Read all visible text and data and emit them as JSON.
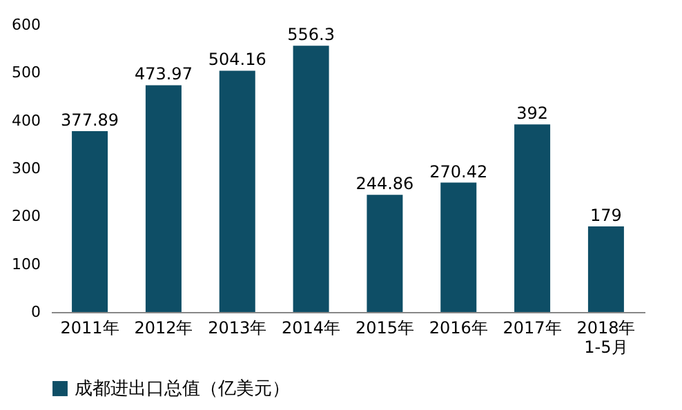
{
  "chart_data": {
    "type": "bar",
    "categories": [
      "2011年",
      "2012年",
      "2013年",
      "2014年",
      "2015年",
      "2016年",
      "2017年",
      "2018年\n1-5月"
    ],
    "series": [
      {
        "name": "成都进出口总值（亿美元）",
        "color": "#0e4e66",
        "values": [
          377.89,
          473.97,
          504.16,
          556.3,
          244.86,
          270.42,
          392,
          179
        ]
      }
    ],
    "ylim": [
      0,
      600
    ],
    "yticks": [
      0,
      100,
      200,
      300,
      400,
      500,
      600
    ],
    "data_labels": true,
    "legend": "bottom"
  }
}
